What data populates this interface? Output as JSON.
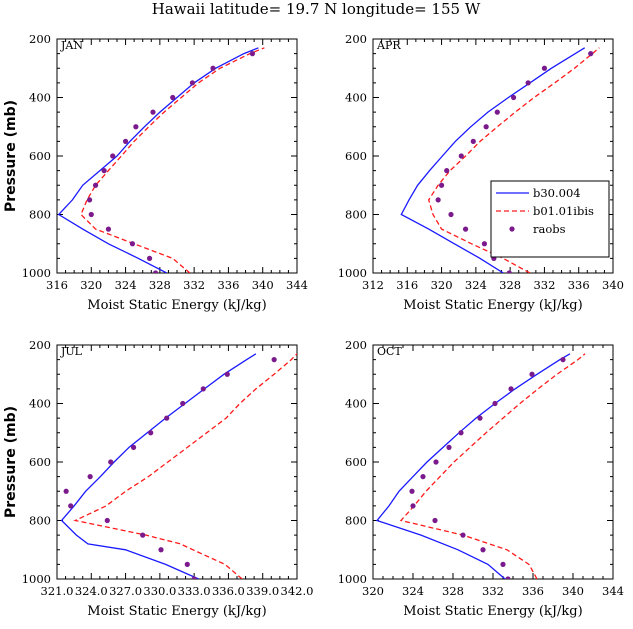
{
  "figure": {
    "title": "Hawaii  latitude= 19.7 N longitude= 155 W"
  },
  "colors": {
    "model_a": "#1a1aff",
    "model_b": "#ff1a1a",
    "obs": "#7a1a8c"
  },
  "legend": {
    "placement": "inside APR panel, right middle",
    "entries": [
      "b30.004",
      "b01.01ibis",
      "raobs"
    ]
  },
  "chart_data": [
    {
      "type": "line",
      "panel": "JAN",
      "xlabel": "Moist Static Energy (kJ/kg)",
      "ylabel": "Pressure (mb)",
      "xlim": [
        316,
        344
      ],
      "ylim": [
        1000,
        200
      ],
      "x_ticks": [
        316,
        320,
        324,
        328,
        332,
        336,
        340,
        344
      ],
      "x_tick_labels": [
        "316",
        "320",
        "324",
        "328",
        "332",
        "336",
        "340",
        "344"
      ],
      "y_ticks": [
        200,
        400,
        600,
        800,
        1000
      ],
      "grid": false,
      "pressure_levels": [
        1000,
        950,
        900,
        850,
        800,
        750,
        700,
        650,
        600,
        550,
        500,
        450,
        400,
        350,
        300,
        250,
        230
      ],
      "series": [
        {
          "name": "b30.004",
          "style": "solid",
          "values": [
            328.8,
            325.5,
            322.0,
            319.0,
            316.2,
            317.8,
            319.0,
            321.0,
            323.0,
            324.5,
            326.2,
            328.0,
            330.0,
            332.0,
            334.5,
            337.8,
            339.5
          ]
        },
        {
          "name": "b01.01ibis",
          "style": "dashed",
          "values": [
            331.5,
            329.5,
            325.0,
            320.5,
            318.8,
            319.5,
            320.5,
            322.0,
            323.5,
            325.0,
            326.7,
            328.5,
            330.5,
            332.5,
            335.0,
            338.5,
            340.2
          ]
        },
        {
          "name": "raobs",
          "style": "markers",
          "points": [
            [
              327.5,
              1000
            ],
            [
              326.8,
              950
            ],
            [
              324.8,
              900
            ],
            [
              322.0,
              850
            ],
            [
              320.0,
              800
            ],
            [
              319.8,
              750
            ],
            [
              320.5,
              700
            ],
            [
              321.5,
              650
            ],
            [
              322.5,
              600
            ],
            [
              324.0,
              550
            ],
            [
              325.2,
              500
            ],
            [
              327.2,
              450
            ],
            [
              329.5,
              400
            ],
            [
              331.8,
              350
            ],
            [
              334.2,
              300
            ],
            [
              338.8,
              250
            ]
          ]
        }
      ]
    },
    {
      "type": "line",
      "panel": "APR",
      "xlabel": "Moist Static Energy (kJ/kg)",
      "ylabel": "",
      "xlim": [
        312,
        340
      ],
      "ylim": [
        1000,
        200
      ],
      "x_ticks": [
        312,
        316,
        320,
        324,
        328,
        332,
        336,
        340
      ],
      "x_tick_labels": [
        "312",
        "316",
        "320",
        "324",
        "328",
        "332",
        "336",
        "340"
      ],
      "y_ticks": [
        200,
        400,
        600,
        800,
        1000
      ],
      "grid": false,
      "pressure_levels": [
        1000,
        950,
        900,
        850,
        800,
        750,
        700,
        650,
        600,
        550,
        500,
        450,
        400,
        350,
        300,
        250,
        230
      ],
      "series": [
        {
          "name": "b30.004",
          "style": "solid",
          "values": [
            327.2,
            324.5,
            321.5,
            318.5,
            315.3,
            316.2,
            317.2,
            318.6,
            320.1,
            321.6,
            323.4,
            325.4,
            327.8,
            330.3,
            332.8,
            335.6,
            336.7
          ]
        },
        {
          "name": "b01.01ibis",
          "style": "dashed",
          "values": [
            330.3,
            327.2,
            323.5,
            320.0,
            319.0,
            318.5,
            319.6,
            321.0,
            322.8,
            324.5,
            326.5,
            328.6,
            330.8,
            333.2,
            335.5,
            337.6,
            338.4
          ]
        },
        {
          "name": "raobs",
          "style": "markers",
          "points": [
            [
              327.9,
              1000
            ],
            [
              326.1,
              950
            ],
            [
              325.0,
              900
            ],
            [
              322.8,
              850
            ],
            [
              321.1,
              800
            ],
            [
              319.6,
              750
            ],
            [
              320.0,
              700
            ],
            [
              320.6,
              650
            ],
            [
              322.3,
              600
            ],
            [
              323.7,
              550
            ],
            [
              325.2,
              500
            ],
            [
              326.5,
              450
            ],
            [
              328.4,
              400
            ],
            [
              330.1,
              350
            ],
            [
              332.0,
              300
            ],
            [
              337.4,
              250
            ]
          ]
        }
      ]
    },
    {
      "type": "line",
      "panel": "JUL",
      "xlabel": "Moist Static Energy (kJ/kg)",
      "ylabel": "Pressure (mb)",
      "xlim": [
        321.0,
        342.0
      ],
      "ylim": [
        1000,
        200
      ],
      "x_ticks": [
        321.0,
        324.0,
        327.0,
        330.0,
        333.0,
        336.0,
        339.0,
        342.0
      ],
      "x_tick_labels": [
        "321.0",
        "324.0",
        "327.0",
        "330.0",
        "333.0",
        "336.0",
        "339.0",
        "342.0"
      ],
      "y_ticks": [
        200,
        400,
        600,
        800,
        1000
      ],
      "grid": false,
      "pressure_levels": [
        1000,
        950,
        900,
        880,
        850,
        800,
        750,
        700,
        650,
        600,
        550,
        500,
        450,
        400,
        350,
        300,
        250,
        230
      ],
      "series": [
        {
          "name": "b30.004",
          "style": "solid",
          "values": [
            333.4,
            330.5,
            327.0,
            323.7,
            322.7,
            321.4,
            322.5,
            323.5,
            324.8,
            326.0,
            327.3,
            328.9,
            330.5,
            332.2,
            333.9,
            335.6,
            337.6,
            338.4
          ]
        },
        {
          "name": "b01.01ibis",
          "style": "dashed",
          "values": [
            337.2,
            335.7,
            332.9,
            331.8,
            328.8,
            322.6,
            325.3,
            327.0,
            329.0,
            330.7,
            332.4,
            334.1,
            335.8,
            337.0,
            338.4,
            340.0,
            341.5,
            342.0
          ]
        },
        {
          "name": "raobs",
          "style": "markers",
          "points": [
            [
              333.0,
              1000
            ],
            [
              332.4,
              950
            ],
            [
              330.1,
              900
            ],
            [
              328.5,
              850
            ],
            [
              325.4,
              800
            ],
            [
              322.2,
              750
            ],
            [
              321.8,
              700
            ],
            [
              323.9,
              650
            ],
            [
              325.7,
              600
            ],
            [
              327.7,
              550
            ],
            [
              329.2,
              500
            ],
            [
              330.6,
              450
            ],
            [
              332.0,
              400
            ],
            [
              333.8,
              350
            ],
            [
              335.9,
              300
            ],
            [
              340.0,
              250
            ]
          ]
        }
      ]
    },
    {
      "type": "line",
      "panel": "OCT",
      "xlabel": "Moist Static Energy (kJ/kg)",
      "ylabel": "",
      "xlim": [
        320,
        344
      ],
      "ylim": [
        1000,
        200
      ],
      "x_ticks": [
        320,
        324,
        328,
        332,
        336,
        340,
        344
      ],
      "x_tick_labels": [
        "320",
        "324",
        "328",
        "332",
        "336",
        "340",
        "344"
      ],
      "y_ticks": [
        200,
        400,
        600,
        800,
        1000
      ],
      "grid": false,
      "pressure_levels": [
        1000,
        950,
        900,
        850,
        800,
        750,
        700,
        650,
        600,
        550,
        500,
        450,
        400,
        350,
        300,
        250,
        230
      ],
      "series": [
        {
          "name": "b30.004",
          "style": "solid",
          "values": [
            333.2,
            331.5,
            328.5,
            324.8,
            320.4,
            321.6,
            322.6,
            324.0,
            325.4,
            327.0,
            328.6,
            330.3,
            332.2,
            334.2,
            336.4,
            338.7,
            339.7
          ]
        },
        {
          "name": "b01.01ibis",
          "style": "dashed",
          "values": [
            336.4,
            335.6,
            333.4,
            329.0,
            322.8,
            324.1,
            325.3,
            326.7,
            328.1,
            329.7,
            331.3,
            333.0,
            334.7,
            336.5,
            338.4,
            340.5,
            341.2
          ]
        },
        {
          "name": "raobs",
          "style": "markers",
          "points": [
            [
              333.5,
              1000
            ],
            [
              333.0,
              950
            ],
            [
              331.0,
              900
            ],
            [
              329.0,
              850
            ],
            [
              326.2,
              800
            ],
            [
              324.0,
              750
            ],
            [
              323.9,
              700
            ],
            [
              325.0,
              650
            ],
            [
              326.3,
              600
            ],
            [
              327.6,
              550
            ],
            [
              328.8,
              500
            ],
            [
              330.7,
              450
            ],
            [
              332.2,
              400
            ],
            [
              333.8,
              350
            ],
            [
              335.9,
              300
            ],
            [
              339.0,
              250
            ]
          ]
        }
      ]
    }
  ]
}
